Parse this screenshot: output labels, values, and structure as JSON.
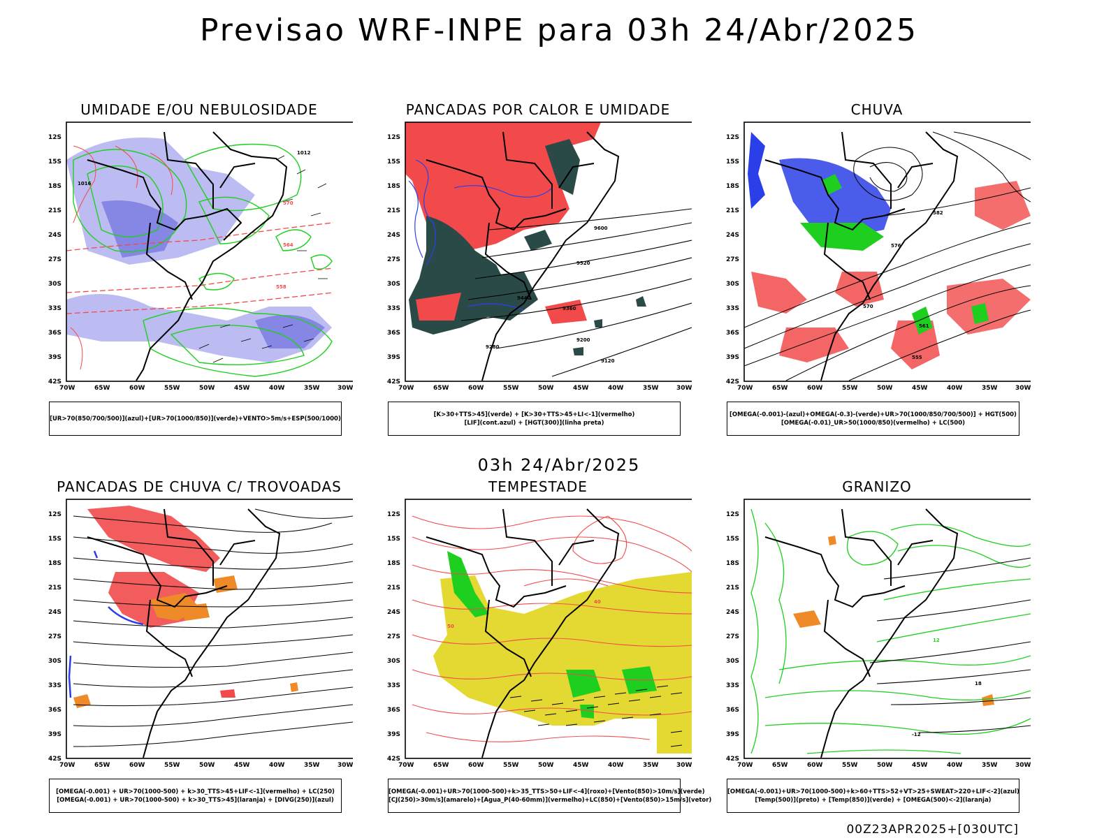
{
  "header": {
    "title": "Previsao WRF-INPE  para 03h 24/Abr/2025",
    "mid_title": "03h 24/Abr/2025",
    "footer": "00Z23APR2025+[030UTC]"
  },
  "axes": {
    "lat_labels": [
      "12S",
      "15S",
      "18S",
      "21S",
      "24S",
      "27S",
      "30S",
      "33S",
      "36S",
      "39S",
      "42S"
    ],
    "lon_labels": [
      "70W",
      "65W",
      "60W",
      "55W",
      "50W",
      "45W",
      "40W",
      "35W",
      "30W"
    ]
  },
  "panels": [
    {
      "title": "UMIDADE E/OU NEBULOSIDADE",
      "caption": [
        "[UR>70(850/700/500)](azul)+[UR>70(1000/850)](verde)+VENTO>5m/s+ESP(500/1000)"
      ],
      "contour_labels": [
        "1012",
        "1016",
        "564",
        "570",
        "558"
      ]
    },
    {
      "title": "PANCADAS POR CALOR E UMIDADE",
      "caption": [
        "[K>30+TTS>45](verde)  +  [K>30+TTS>45+LI<-1](vermelho)",
        "[LIF](cont.azul)  +  [HGT(300)](linha preta)"
      ],
      "contour_labels": [
        "9600",
        "9520",
        "9440",
        "9360",
        "9280",
        "9200",
        "9120"
      ]
    },
    {
      "title": "CHUVA",
      "caption": [
        "[OMEGA(-0.001)-(azul)+OMEGA(-0.3)-(verde)+UR>70(1000/850/700/500)]  +  HGT(500)",
        "[OMEGA(-0.01)_UR>50(1000/850)(vermelho)  +  LC(500)"
      ],
      "contour_labels": [
        "582",
        "576",
        "570",
        "561",
        "555"
      ]
    },
    {
      "title": "PANCADAS DE CHUVA C/ TROVOADAS",
      "caption": [
        "[OMEGA(-0.001)  +  UR>70(1000-500)  +  k>30_TTS>45+LIF<-1](vermelho)  +  LC(250)",
        "[OMEGA(-0.001)  +  UR>70(1000-500)  +  k>30_TTS>45](laranja)  +  [DIVG(250)](azul)"
      ],
      "contour_labels": []
    },
    {
      "title": "TEMPESTADE",
      "caption": [
        "[OMEGA(-0.001)+UR>70(1000-500)+k>35_TTS>50+LIF<-4](roxo)+[Vento(850)>10m/s](verde)",
        "[CJ(250)>30m/s](amarelo)+[Agua_P(40-60mm)](vermelho)+LC(850)+[Vento(850)>15m/s](vetor)"
      ],
      "contour_labels": [
        "40",
        "50"
      ]
    },
    {
      "title": "GRANIZO",
      "caption": [
        "[OMEGA(-0.001)+UR>70(1000-500)+k>60+TTS>52+VT>25+SWEAT>220+LIF<-2](azul)",
        "[Temp(500)](preto)  +  [Temp(850)](verde)  +  [OMEGA(500)<-2](laranja)"
      ],
      "contour_labels": [
        "12",
        "18",
        "-12"
      ]
    }
  ],
  "colors": {
    "red": "#f24a4a",
    "green": "#1fcf1f",
    "blue": "#2b3fe8",
    "lavender": "#a6a6ee",
    "dark_teal": "#2a4a48",
    "yellow": "#e4d832",
    "orange": "#ef8a28",
    "black": "#000000"
  }
}
